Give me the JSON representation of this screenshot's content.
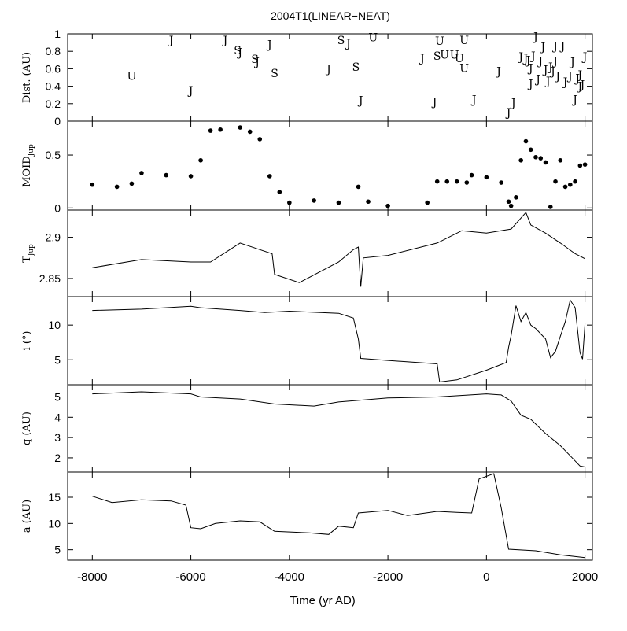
{
  "chart_data": {
    "title": "2004T1(LINEAR−NEAT)",
    "type": "multi-panel",
    "xlabel": "Time (yr AD)",
    "xlim": [
      -8500,
      2150
    ],
    "xticks": [
      -8000,
      -6000,
      -4000,
      -2000,
      0,
      2000
    ],
    "xtick_labels": [
      "-8000",
      "-6000",
      "-4000",
      "-2000",
      "0",
      "2000"
    ],
    "panels": [
      {
        "id": "dist",
        "type": "scatter-letters",
        "ylabel": "Dist. (AU)",
        "ylim": [
          0,
          1
        ],
        "yticks": [
          0,
          0.2,
          0.4,
          0.6,
          0.8,
          1
        ],
        "ytick_labels": [
          "0",
          "0.2",
          "0.4",
          "0.6",
          "0.8",
          "1"
        ],
        "points": [
          {
            "x": -7200,
            "y": 0.52,
            "label": "U"
          },
          {
            "x": -6000,
            "y": 0.35,
            "label": "J"
          },
          {
            "x": -6400,
            "y": 0.93,
            "label": "J"
          },
          {
            "x": -5300,
            "y": 0.93,
            "label": "J"
          },
          {
            "x": -5050,
            "y": 0.81,
            "label": "S"
          },
          {
            "x": -5000,
            "y": 0.79,
            "label": "J"
          },
          {
            "x": -4700,
            "y": 0.71,
            "label": "S"
          },
          {
            "x": -4650,
            "y": 0.68,
            "label": "J"
          },
          {
            "x": -4400,
            "y": 0.88,
            "label": "J"
          },
          {
            "x": -4300,
            "y": 0.55,
            "label": "S"
          },
          {
            "x": -3200,
            "y": 0.6,
            "label": "J"
          },
          {
            "x": -2950,
            "y": 0.93,
            "label": "S"
          },
          {
            "x": -2800,
            "y": 0.89,
            "label": "J"
          },
          {
            "x": -2650,
            "y": 0.62,
            "label": "S"
          },
          {
            "x": -2550,
            "y": 0.24,
            "label": "J"
          },
          {
            "x": -2300,
            "y": 0.96,
            "label": "U"
          },
          {
            "x": -1300,
            "y": 0.72,
            "label": "J"
          },
          {
            "x": -1050,
            "y": 0.22,
            "label": "J"
          },
          {
            "x": -1000,
            "y": 0.75,
            "label": "S"
          },
          {
            "x": -950,
            "y": 0.92,
            "label": "U"
          },
          {
            "x": -850,
            "y": 0.76,
            "label": "U"
          },
          {
            "x": -650,
            "y": 0.76,
            "label": "U"
          },
          {
            "x": -550,
            "y": 0.72,
            "label": "U"
          },
          {
            "x": -450,
            "y": 0.61,
            "label": "U"
          },
          {
            "x": -450,
            "y": 0.93,
            "label": "U"
          },
          {
            "x": -250,
            "y": 0.25,
            "label": "J"
          },
          {
            "x": 250,
            "y": 0.57,
            "label": "J"
          },
          {
            "x": 450,
            "y": 0.1,
            "label": "J"
          },
          {
            "x": 550,
            "y": 0.21,
            "label": "J"
          },
          {
            "x": 700,
            "y": 0.74,
            "label": "J"
          },
          {
            "x": 800,
            "y": 0.72,
            "label": "J"
          },
          {
            "x": 850,
            "y": 0.7,
            "label": "J"
          },
          {
            "x": 900,
            "y": 0.43,
            "label": "J"
          },
          {
            "x": 900,
            "y": 0.61,
            "label": "J"
          },
          {
            "x": 950,
            "y": 0.75,
            "label": "J"
          },
          {
            "x": 1000,
            "y": 0.97,
            "label": "J"
          },
          {
            "x": 1050,
            "y": 0.48,
            "label": "J"
          },
          {
            "x": 1100,
            "y": 0.69,
            "label": "J"
          },
          {
            "x": 1150,
            "y": 0.85,
            "label": "J"
          },
          {
            "x": 1200,
            "y": 0.59,
            "label": "J"
          },
          {
            "x": 1250,
            "y": 0.46,
            "label": "J"
          },
          {
            "x": 1300,
            "y": 0.62,
            "label": "J"
          },
          {
            "x": 1350,
            "y": 0.57,
            "label": "J"
          },
          {
            "x": 1400,
            "y": 0.69,
            "label": "J"
          },
          {
            "x": 1400,
            "y": 0.86,
            "label": "J"
          },
          {
            "x": 1450,
            "y": 0.52,
            "label": "J"
          },
          {
            "x": 1550,
            "y": 0.86,
            "label": "J"
          },
          {
            "x": 1600,
            "y": 0.45,
            "label": "J"
          },
          {
            "x": 1700,
            "y": 0.52,
            "label": "J"
          },
          {
            "x": 1750,
            "y": 0.68,
            "label": "J"
          },
          {
            "x": 1800,
            "y": 0.25,
            "label": "J"
          },
          {
            "x": 1850,
            "y": 0.49,
            "label": "J"
          },
          {
            "x": 1900,
            "y": 0.53,
            "label": "J"
          },
          {
            "x": 1900,
            "y": 0.4,
            "label": "J"
          },
          {
            "x": 1950,
            "y": 0.42,
            "label": "J"
          },
          {
            "x": 2000,
            "y": 0.74,
            "label": "J"
          }
        ]
      },
      {
        "id": "moid",
        "type": "scatter",
        "ylabel": "MOID",
        "ylabel_sub": "Jup",
        "ylim": [
          -0.02,
          0.82
        ],
        "yticks": [
          0,
          0.5
        ],
        "ytick_labels": [
          "0",
          "0.5"
        ],
        "x": [
          -8000,
          -7500,
          -7200,
          -7000,
          -6500,
          -6000,
          -5800,
          -5600,
          -5400,
          -5000,
          -4800,
          -4600,
          -4400,
          -4200,
          -4000,
          -3500,
          -3000,
          -2600,
          -2400,
          -2000,
          -1200,
          -1000,
          -800,
          -600,
          -400,
          -300,
          0,
          300,
          450,
          500,
          600,
          700,
          800,
          900,
          1000,
          1100,
          1200,
          1300,
          1400,
          1500,
          1600,
          1700,
          1800,
          1900,
          2000
        ],
        "y": [
          0.22,
          0.2,
          0.23,
          0.33,
          0.31,
          0.3,
          0.45,
          0.73,
          0.74,
          0.76,
          0.72,
          0.65,
          0.3,
          0.15,
          0.05,
          0.07,
          0.05,
          0.2,
          0.06,
          0.02,
          0.05,
          0.25,
          0.25,
          0.25,
          0.24,
          0.31,
          0.29,
          0.24,
          0.06,
          0.02,
          0.1,
          0.45,
          0.63,
          0.55,
          0.48,
          0.47,
          0.43,
          0.01,
          0.25,
          0.45,
          0.2,
          0.22,
          0.25,
          0.4,
          0.41
        ]
      },
      {
        "id": "tjup",
        "type": "line",
        "ylabel": "T",
        "ylabel_sub": "Jup",
        "ylim": [
          2.828,
          2.933
        ],
        "yticks": [
          2.85,
          2.9
        ],
        "ytick_labels": [
          "2.85",
          "2.9"
        ],
        "x": [
          -8000,
          -7000,
          -6000,
          -5600,
          -5000,
          -4600,
          -4350,
          -4300,
          -3800,
          -3000,
          -2700,
          -2600,
          -2550,
          -2500,
          -2000,
          -1000,
          -500,
          0,
          500,
          800,
          900,
          1200,
          1500,
          1800,
          2000
        ],
        "y": [
          2.863,
          2.873,
          2.87,
          2.87,
          2.893,
          2.885,
          2.88,
          2.855,
          2.845,
          2.87,
          2.885,
          2.888,
          2.84,
          2.875,
          2.878,
          2.893,
          2.908,
          2.905,
          2.91,
          2.93,
          2.915,
          2.905,
          2.893,
          2.88,
          2.874
        ]
      },
      {
        "id": "incl",
        "type": "line",
        "ylabel": "i (°)",
        "ylim": [
          1.4,
          14.1
        ],
        "yticks": [
          5,
          10
        ],
        "ytick_labels": [
          "5",
          "10"
        ],
        "x": [
          -8000,
          -7000,
          -6000,
          -5800,
          -5000,
          -4500,
          -4000,
          -3000,
          -2700,
          -2600,
          -2550,
          -2000,
          -1000,
          -950,
          -600,
          0,
          400,
          450,
          500,
          600,
          700,
          800,
          900,
          1000,
          1200,
          1300,
          1400,
          1500,
          1600,
          1700,
          1800,
          1900,
          1950,
          2000
        ],
        "y": [
          12.1,
          12.3,
          12.7,
          12.5,
          12.1,
          11.8,
          12.0,
          11.7,
          11.0,
          8.0,
          5.2,
          4.9,
          4.4,
          1.8,
          2.1,
          3.5,
          4.6,
          6.8,
          8.5,
          12.8,
          10.5,
          11.8,
          10.0,
          9.5,
          8.0,
          5.3,
          6.2,
          8.4,
          10.5,
          13.6,
          12.5,
          6.0,
          5.1,
          10.2
        ]
      },
      {
        "id": "q",
        "type": "line",
        "ylabel": "q (AU)",
        "ylim": [
          1.3,
          5.6
        ],
        "yticks": [
          2,
          3,
          4,
          5
        ],
        "ytick_labels": [
          "2",
          "3",
          "4",
          "5"
        ],
        "x": [
          -8000,
          -7000,
          -6000,
          -5800,
          -5000,
          -4300,
          -3500,
          -3000,
          -2000,
          -1000,
          0,
          300,
          500,
          700,
          900,
          1200,
          1500,
          1700,
          1900,
          2000
        ],
        "y": [
          5.15,
          5.25,
          5.15,
          5.0,
          4.9,
          4.65,
          4.55,
          4.75,
          4.95,
          5.0,
          5.15,
          5.1,
          4.8,
          4.1,
          3.9,
          3.2,
          2.6,
          2.1,
          1.6,
          1.55
        ]
      },
      {
        "id": "a",
        "type": "line",
        "ylabel": "a (AU)",
        "ylim": [
          3,
          19.8
        ],
        "yticks": [
          5,
          10,
          15
        ],
        "ytick_labels": [
          "5",
          "10",
          "15"
        ],
        "x": [
          -8000,
          -7600,
          -7000,
          -6400,
          -6100,
          -6000,
          -5800,
          -5500,
          -5000,
          -4600,
          -4300,
          -3600,
          -3200,
          -3000,
          -2700,
          -2600,
          -2000,
          -1600,
          -1000,
          -600,
          -300,
          -150,
          150,
          300,
          450,
          1000,
          1500,
          2000
        ],
        "y": [
          15.2,
          14.0,
          14.5,
          14.3,
          13.5,
          9.2,
          9.0,
          10.0,
          10.5,
          10.3,
          8.5,
          8.2,
          7.9,
          9.5,
          9.2,
          12.0,
          12.5,
          11.5,
          12.3,
          12.1,
          12.0,
          18.5,
          19.5,
          13.0,
          5.1,
          4.8,
          4.0,
          3.5
        ]
      }
    ]
  }
}
